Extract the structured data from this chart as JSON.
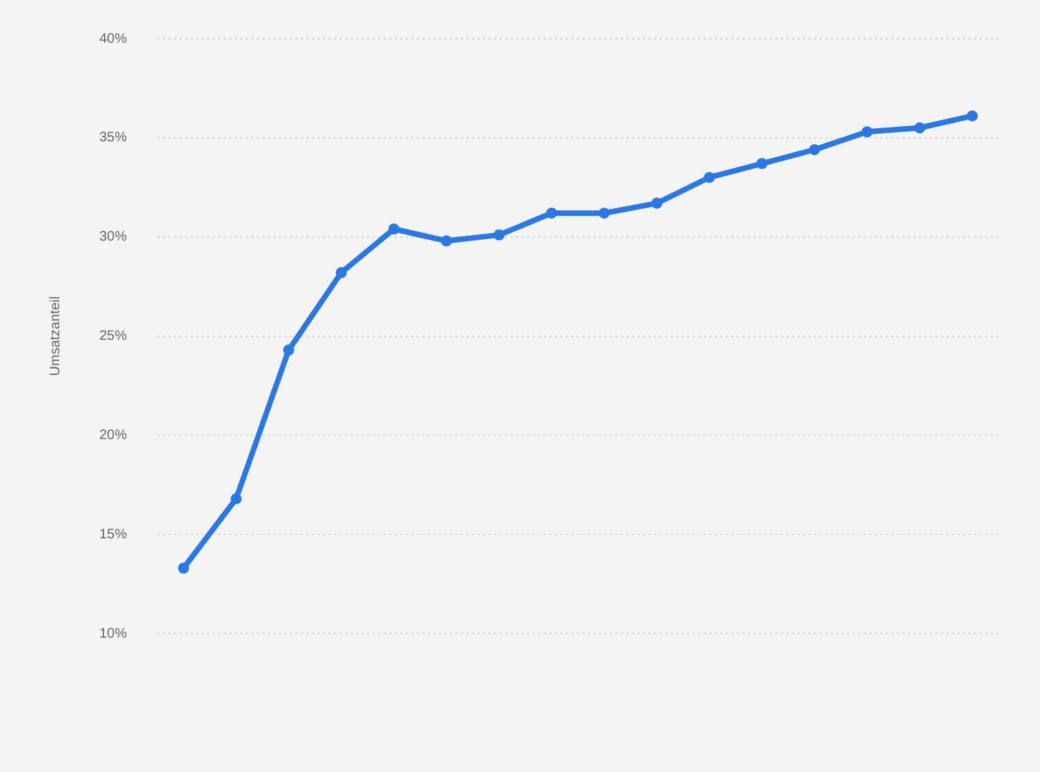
{
  "chart_data": {
    "type": "line",
    "ylabel": "Umsatzanteil",
    "categories": [
      null,
      null,
      null,
      null,
      null,
      null,
      null,
      null,
      null,
      null,
      null,
      null,
      null,
      null,
      null,
      null
    ],
    "series": [
      {
        "color": "#2b78e4",
        "values": [
          13.3,
          16.8,
          24.3,
          28.2,
          30.4,
          29.8,
          30.1,
          31.2,
          31.2,
          31.7,
          33.0,
          33.7,
          34.4,
          35.3,
          35.5,
          36.1
        ]
      }
    ],
    "ylim": [
      10,
      40
    ],
    "yticks": [
      {
        "value": 10,
        "label": "10%"
      },
      {
        "value": 15,
        "label": "15%"
      },
      {
        "value": 20,
        "label": "20%"
      },
      {
        "value": 25,
        "label": "25%"
      },
      {
        "value": 30,
        "label": "30%"
      },
      {
        "value": 35,
        "label": "35%"
      },
      {
        "value": 40,
        "label": "40%"
      }
    ],
    "grid": "y",
    "legend": false,
    "marker": "circle",
    "line_style": "solid"
  }
}
